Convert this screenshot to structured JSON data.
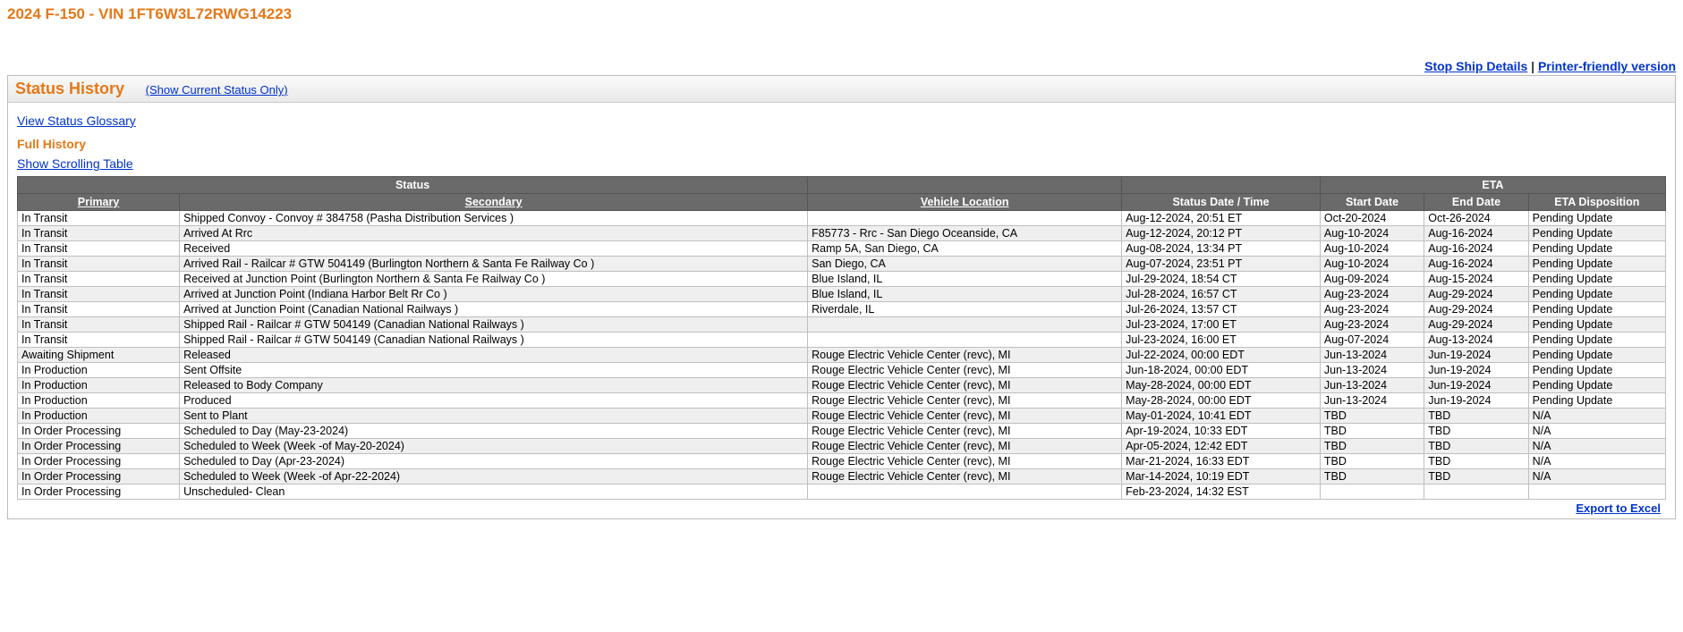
{
  "page_title": "2024 F-150 - VIN 1FT6W3L72RWG14223",
  "top_links": {
    "stop_ship": "Stop Ship Details",
    "printer": "Printer-friendly version"
  },
  "panel": {
    "heading": "Status History",
    "show_current_link": "(Show Current Status Only)",
    "glossary_link": "View Status Glossary",
    "full_history_heading": "Full History",
    "scrolling_link": "Show Scrolling Table",
    "export_link": "Export to Excel"
  },
  "table": {
    "group_headers": {
      "status": "Status",
      "eta": "ETA"
    },
    "headers": {
      "primary": "Primary",
      "secondary": "Secondary",
      "location": "Vehicle Location",
      "datetime": "Status Date / Time",
      "start": "Start Date",
      "end": "End Date",
      "disposition": "ETA Disposition"
    },
    "rows": [
      {
        "primary": "In Transit",
        "secondary": "Shipped Convoy - Convoy # 384758 (Pasha Distribution Services )",
        "location": "",
        "datetime": "Aug-12-2024, 20:51 ET",
        "start": "Oct-20-2024",
        "end": "Oct-26-2024",
        "disp": "Pending Update"
      },
      {
        "primary": "In Transit",
        "secondary": "Arrived At Rrc",
        "location": "F85773 - Rrc -  San Diego Oceanside, CA",
        "datetime": "Aug-12-2024, 20:12 PT",
        "start": "Aug-10-2024",
        "end": "Aug-16-2024",
        "disp": "Pending Update"
      },
      {
        "primary": "In Transit",
        "secondary": "Received",
        "location": "Ramp 5A, San Diego, CA",
        "datetime": "Aug-08-2024, 13:34 PT",
        "start": "Aug-10-2024",
        "end": "Aug-16-2024",
        "disp": "Pending Update"
      },
      {
        "primary": "In Transit",
        "secondary": "Arrived Rail - Railcar # GTW 504149 (Burlington Northern & Santa Fe Railway Co )",
        "location": "San Diego, CA",
        "datetime": "Aug-07-2024, 23:51 PT",
        "start": "Aug-10-2024",
        "end": "Aug-16-2024",
        "disp": "Pending Update"
      },
      {
        "primary": "In Transit",
        "secondary": "Received at Junction Point (Burlington Northern & Santa Fe Railway Co )",
        "location": "Blue Island, IL",
        "datetime": "Jul-29-2024, 18:54 CT",
        "start": "Aug-09-2024",
        "end": "Aug-15-2024",
        "disp": "Pending Update"
      },
      {
        "primary": "In Transit",
        "secondary": "Arrived at Junction Point (Indiana Harbor Belt Rr Co )",
        "location": "Blue Island, IL",
        "datetime": "Jul-28-2024, 16:57 CT",
        "start": "Aug-23-2024",
        "end": "Aug-29-2024",
        "disp": "Pending Update"
      },
      {
        "primary": "In Transit",
        "secondary": "Arrived at Junction Point (Canadian National Railways )",
        "location": "Riverdale, IL",
        "datetime": "Jul-26-2024, 13:57 CT",
        "start": "Aug-23-2024",
        "end": "Aug-29-2024",
        "disp": "Pending Update"
      },
      {
        "primary": "In Transit",
        "secondary": "Shipped Rail - Railcar # GTW 504149 (Canadian National Railways )",
        "location": "",
        "datetime": "Jul-23-2024, 17:00 ET",
        "start": "Aug-23-2024",
        "end": "Aug-29-2024",
        "disp": "Pending Update"
      },
      {
        "primary": "In Transit",
        "secondary": "Shipped Rail - Railcar # GTW 504149 (Canadian National Railways )",
        "location": "",
        "datetime": "Jul-23-2024, 16:00 ET",
        "start": "Aug-07-2024",
        "end": "Aug-13-2024",
        "disp": "Pending Update"
      },
      {
        "primary": "Awaiting Shipment",
        "secondary": "Released",
        "location": "Rouge Electric Vehicle Center (revc), MI",
        "datetime": "Jul-22-2024, 00:00 EDT",
        "start": "Jun-13-2024",
        "end": "Jun-19-2024",
        "disp": "Pending Update"
      },
      {
        "primary": "In Production",
        "secondary": "Sent Offsite",
        "location": "Rouge Electric Vehicle Center (revc), MI",
        "datetime": "Jun-18-2024, 00:00 EDT",
        "start": "Jun-13-2024",
        "end": "Jun-19-2024",
        "disp": "Pending Update"
      },
      {
        "primary": "In Production",
        "secondary": "Released to Body Company",
        "location": "Rouge Electric Vehicle Center (revc), MI",
        "datetime": "May-28-2024, 00:00 EDT",
        "start": "Jun-13-2024",
        "end": "Jun-19-2024",
        "disp": "Pending Update"
      },
      {
        "primary": "In Production",
        "secondary": "Produced",
        "location": "Rouge Electric Vehicle Center (revc), MI",
        "datetime": "May-28-2024, 00:00 EDT",
        "start": "Jun-13-2024",
        "end": "Jun-19-2024",
        "disp": "Pending Update"
      },
      {
        "primary": "In Production",
        "secondary": "Sent to Plant",
        "location": "Rouge Electric Vehicle Center (revc), MI",
        "datetime": "May-01-2024, 10:41 EDT",
        "start": "TBD",
        "end": "TBD",
        "disp": "N/A"
      },
      {
        "primary": "In Order Processing",
        "secondary": "Scheduled to Day (May-23-2024)",
        "location": "Rouge Electric Vehicle Center (revc), MI",
        "datetime": "Apr-19-2024, 10:33 EDT",
        "start": "TBD",
        "end": "TBD",
        "disp": "N/A"
      },
      {
        "primary": "In Order Processing",
        "secondary": "Scheduled to Week (Week -of May-20-2024)",
        "location": "Rouge Electric Vehicle Center (revc), MI",
        "datetime": "Apr-05-2024, 12:42 EDT",
        "start": "TBD",
        "end": "TBD",
        "disp": "N/A"
      },
      {
        "primary": "In Order Processing",
        "secondary": "Scheduled to Day (Apr-23-2024)",
        "location": "Rouge Electric Vehicle Center (revc), MI",
        "datetime": "Mar-21-2024, 16:33 EDT",
        "start": "TBD",
        "end": "TBD",
        "disp": "N/A"
      },
      {
        "primary": "In Order Processing",
        "secondary": "Scheduled to Week (Week -of Apr-22-2024)",
        "location": "Rouge Electric Vehicle Center (revc), MI",
        "datetime": "Mar-14-2024, 10:19 EDT",
        "start": "TBD",
        "end": "TBD",
        "disp": "N/A"
      },
      {
        "primary": "In Order Processing",
        "secondary": "Unscheduled- Clean",
        "location": "",
        "datetime": "Feb-23-2024, 14:32 EST",
        "start": "",
        "end": "",
        "disp": ""
      }
    ]
  },
  "colors": {
    "accent": "#e67817",
    "link": "#0033cc",
    "header_bg": "#6a6a6a",
    "row_alt": "#efefef",
    "border": "#bfbfbf"
  }
}
